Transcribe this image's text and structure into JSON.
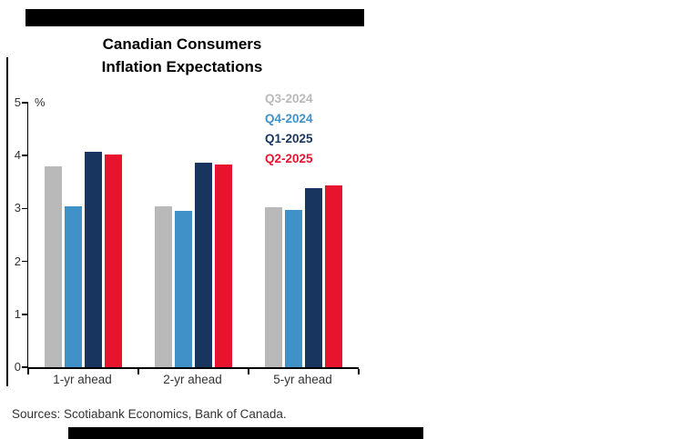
{
  "chart_data": {
    "type": "bar",
    "title": "Canadian Consumers Inflation Expectations",
    "title_lines": [
      "Canadian Consumers",
      "Inflation Expectations"
    ],
    "ylabel": "%",
    "ylim": [
      0,
      5
    ],
    "yticks": [
      0,
      1,
      2,
      3,
      4,
      5
    ],
    "categories": [
      "1-yr ahead",
      "2-yr ahead",
      "5-yr ahead"
    ],
    "series": [
      {
        "name": "Q3-2024",
        "color": "#b9b9b9",
        "values": [
          3.8,
          3.05,
          3.02
        ]
      },
      {
        "name": "Q4-2024",
        "color": "#4191c9",
        "values": [
          3.05,
          2.95,
          2.97
        ]
      },
      {
        "name": "Q1-2025",
        "color": "#17355e",
        "values": [
          4.08,
          3.87,
          3.38
        ]
      },
      {
        "name": "Q2-2025",
        "color": "#e8132d",
        "values": [
          4.02,
          3.83,
          3.43
        ]
      }
    ],
    "legend_position": "top-right",
    "grid": false
  },
  "footer": {
    "source": "Sources: Scotiabank Economics, Bank of Canada."
  }
}
